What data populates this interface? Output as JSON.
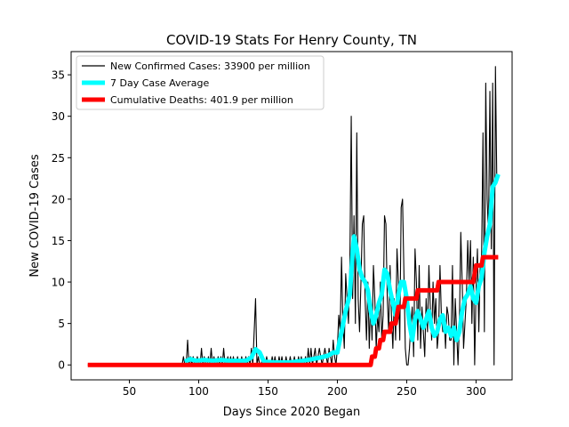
{
  "chart_data": {
    "type": "line",
    "title": "COVID-19 Stats For Henry County, TN",
    "xlabel": "Days Since 2020 Began",
    "ylabel": "New COVID-19 Cases",
    "xlim": [
      8,
      326
    ],
    "ylim": [
      -1.8,
      37.8
    ],
    "xticks": [
      50,
      100,
      150,
      200,
      250,
      300
    ],
    "yticks": [
      0,
      5,
      10,
      15,
      20,
      25,
      30,
      35
    ],
    "grid": false,
    "legend_position": "top-left",
    "series": [
      {
        "name": "New Confirmed Cases: 33900 per million",
        "color": "#000000",
        "points": [
          [
            20,
            0
          ],
          [
            88,
            0
          ],
          [
            89,
            1
          ],
          [
            90,
            0
          ],
          [
            91,
            0
          ],
          [
            92,
            3
          ],
          [
            93,
            0
          ],
          [
            94,
            1
          ],
          [
            95,
            0
          ],
          [
            96,
            1
          ],
          [
            97,
            0
          ],
          [
            98,
            0
          ],
          [
            99,
            1
          ],
          [
            100,
            0
          ],
          [
            101,
            0
          ],
          [
            102,
            2
          ],
          [
            103,
            0
          ],
          [
            104,
            1
          ],
          [
            105,
            0
          ],
          [
            106,
            0
          ],
          [
            107,
            1
          ],
          [
            108,
            0
          ],
          [
            109,
            2
          ],
          [
            110,
            0
          ],
          [
            111,
            1
          ],
          [
            112,
            0
          ],
          [
            113,
            0
          ],
          [
            114,
            1
          ],
          [
            115,
            0
          ],
          [
            116,
            1
          ],
          [
            117,
            0
          ],
          [
            118,
            2
          ],
          [
            119,
            0
          ],
          [
            120,
            0
          ],
          [
            121,
            1
          ],
          [
            122,
            0
          ],
          [
            123,
            1
          ],
          [
            124,
            0
          ],
          [
            125,
            1
          ],
          [
            126,
            0
          ],
          [
            127,
            0
          ],
          [
            128,
            1
          ],
          [
            129,
            0
          ],
          [
            130,
            0
          ],
          [
            131,
            1
          ],
          [
            132,
            0
          ],
          [
            133,
            0
          ],
          [
            134,
            1
          ],
          [
            135,
            0
          ],
          [
            136,
            1
          ],
          [
            137,
            0
          ],
          [
            138,
            2
          ],
          [
            139,
            0
          ],
          [
            140,
            4
          ],
          [
            141,
            8
          ],
          [
            142,
            0
          ],
          [
            143,
            1
          ],
          [
            144,
            0
          ],
          [
            145,
            0
          ],
          [
            146,
            1
          ],
          [
            147,
            0
          ],
          [
            148,
            0
          ],
          [
            149,
            1
          ],
          [
            150,
            0
          ],
          [
            151,
            0
          ],
          [
            152,
            0
          ],
          [
            153,
            1
          ],
          [
            154,
            0
          ],
          [
            155,
            1
          ],
          [
            156,
            0
          ],
          [
            157,
            0
          ],
          [
            158,
            1
          ],
          [
            159,
            0
          ],
          [
            160,
            1
          ],
          [
            161,
            0
          ],
          [
            162,
            0
          ],
          [
            163,
            1
          ],
          [
            164,
            0
          ],
          [
            165,
            0
          ],
          [
            166,
            1
          ],
          [
            167,
            0
          ],
          [
            168,
            0
          ],
          [
            169,
            1
          ],
          [
            170,
            0
          ],
          [
            171,
            0
          ],
          [
            172,
            1
          ],
          [
            173,
            0
          ],
          [
            174,
            1
          ],
          [
            175,
            0
          ],
          [
            176,
            0
          ],
          [
            177,
            1
          ],
          [
            178,
            0
          ],
          [
            179,
            2
          ],
          [
            180,
            0
          ],
          [
            181,
            2
          ],
          [
            182,
            0
          ],
          [
            183,
            1
          ],
          [
            184,
            2
          ],
          [
            185,
            0
          ],
          [
            186,
            1
          ],
          [
            187,
            2
          ],
          [
            188,
            1
          ],
          [
            189,
            0
          ],
          [
            190,
            1
          ],
          [
            191,
            2
          ],
          [
            192,
            1
          ],
          [
            193,
            0
          ],
          [
            194,
            2
          ],
          [
            195,
            1
          ],
          [
            196,
            0
          ],
          [
            197,
            3
          ],
          [
            198,
            1
          ],
          [
            199,
            0
          ],
          [
            200,
            2
          ],
          [
            201,
            6
          ],
          [
            202,
            4
          ],
          [
            203,
            13
          ],
          [
            204,
            5
          ],
          [
            205,
            2
          ],
          [
            206,
            11
          ],
          [
            207,
            8
          ],
          [
            208,
            5
          ],
          [
            209,
            12
          ],
          [
            210,
            30
          ],
          [
            211,
            8
          ],
          [
            212,
            18
          ],
          [
            213,
            5
          ],
          [
            214,
            28
          ],
          [
            215,
            8
          ],
          [
            216,
            4
          ],
          [
            217,
            10
          ],
          [
            218,
            17
          ],
          [
            219,
            18
          ],
          [
            220,
            8
          ],
          [
            221,
            3
          ],
          [
            222,
            10
          ],
          [
            223,
            2
          ],
          [
            224,
            8
          ],
          [
            225,
            3
          ],
          [
            226,
            12
          ],
          [
            227,
            8
          ],
          [
            228,
            2
          ],
          [
            229,
            6
          ],
          [
            230,
            4
          ],
          [
            231,
            10
          ],
          [
            232,
            3
          ],
          [
            233,
            6
          ],
          [
            234,
            18
          ],
          [
            235,
            17
          ],
          [
            236,
            8
          ],
          [
            237,
            4
          ],
          [
            238,
            12
          ],
          [
            239,
            6
          ],
          [
            240,
            2
          ],
          [
            241,
            8
          ],
          [
            242,
            3
          ],
          [
            243,
            14
          ],
          [
            244,
            10
          ],
          [
            245,
            3
          ],
          [
            246,
            19
          ],
          [
            247,
            20
          ],
          [
            248,
            11
          ],
          [
            249,
            2
          ],
          [
            250,
            0
          ],
          [
            251,
            0
          ],
          [
            252,
            2
          ],
          [
            253,
            5
          ],
          [
            254,
            7
          ],
          [
            255,
            1
          ],
          [
            256,
            14
          ],
          [
            257,
            10
          ],
          [
            258,
            3
          ],
          [
            259,
            12
          ],
          [
            260,
            2
          ],
          [
            261,
            7
          ],
          [
            262,
            4
          ],
          [
            263,
            1
          ],
          [
            264,
            8
          ],
          [
            265,
            4
          ],
          [
            266,
            12
          ],
          [
            267,
            7
          ],
          [
            268,
            3
          ],
          [
            269,
            10
          ],
          [
            270,
            5
          ],
          [
            271,
            8
          ],
          [
            272,
            2
          ],
          [
            273,
            4
          ],
          [
            274,
            12
          ],
          [
            275,
            6
          ],
          [
            276,
            4
          ],
          [
            277,
            6
          ],
          [
            278,
            2
          ],
          [
            279,
            7
          ],
          [
            280,
            6
          ],
          [
            281,
            3
          ],
          [
            282,
            3
          ],
          [
            283,
            12
          ],
          [
            284,
            0
          ],
          [
            285,
            8
          ],
          [
            286,
            4
          ],
          [
            287,
            0
          ],
          [
            288,
            5
          ],
          [
            289,
            16
          ],
          [
            290,
            10
          ],
          [
            291,
            2
          ],
          [
            292,
            5
          ],
          [
            293,
            8
          ],
          [
            294,
            15
          ],
          [
            295,
            10
          ],
          [
            296,
            15
          ],
          [
            297,
            5
          ],
          [
            298,
            13
          ],
          [
            299,
            0
          ],
          [
            300,
            9
          ],
          [
            301,
            14
          ],
          [
            302,
            4
          ],
          [
            303,
            12
          ],
          [
            304,
            13
          ],
          [
            305,
            28
          ],
          [
            306,
            4
          ],
          [
            307,
            34
          ],
          [
            308,
            20
          ],
          [
            309,
            16
          ],
          [
            310,
            33
          ],
          [
            311,
            14
          ],
          [
            312,
            34
          ],
          [
            313,
            0
          ],
          [
            314,
            36
          ],
          [
            315,
            22
          ],
          [
            316,
            23
          ]
        ]
      },
      {
        "name": "7 Day Case Average",
        "color": "#00ffff",
        "points": [
          [
            90,
            0.4
          ],
          [
            94,
            0.7
          ],
          [
            98,
            0.5
          ],
          [
            104,
            0.6
          ],
          [
            110,
            0.5
          ],
          [
            116,
            0.6
          ],
          [
            122,
            0.5
          ],
          [
            128,
            0.5
          ],
          [
            134,
            0.5
          ],
          [
            138,
            0.9
          ],
          [
            141,
            1.9
          ],
          [
            144,
            1.5
          ],
          [
            147,
            0.4
          ],
          [
            155,
            0.3
          ],
          [
            165,
            0.3
          ],
          [
            175,
            0.5
          ],
          [
            182,
            0.7
          ],
          [
            188,
            0.9
          ],
          [
            193,
            1.1
          ],
          [
            197,
            1.5
          ],
          [
            200,
            1.5
          ],
          [
            203,
            4.0
          ],
          [
            206,
            6.5
          ],
          [
            209,
            8.5
          ],
          [
            211,
            13.5
          ],
          [
            212,
            15.5
          ],
          [
            214,
            14.0
          ],
          [
            216,
            11.5
          ],
          [
            218,
            10.5
          ],
          [
            220,
            10.0
          ],
          [
            222,
            9.0
          ],
          [
            224,
            6.5
          ],
          [
            226,
            5.0
          ],
          [
            228,
            6.0
          ],
          [
            230,
            7.5
          ],
          [
            232,
            8.5
          ],
          [
            234,
            11.5
          ],
          [
            236,
            11.0
          ],
          [
            238,
            9.0
          ],
          [
            240,
            7.5
          ],
          [
            242,
            6.0
          ],
          [
            244,
            8.5
          ],
          [
            246,
            10.0
          ],
          [
            248,
            10.0
          ],
          [
            250,
            8.0
          ],
          [
            252,
            5.0
          ],
          [
            254,
            3.0
          ],
          [
            256,
            5.5
          ],
          [
            258,
            6.5
          ],
          [
            260,
            5.5
          ],
          [
            262,
            4.5
          ],
          [
            264,
            5.5
          ],
          [
            266,
            6.5
          ],
          [
            268,
            4.5
          ],
          [
            270,
            3.5
          ],
          [
            272,
            4.0
          ],
          [
            274,
            5.5
          ],
          [
            276,
            6.0
          ],
          [
            278,
            4.0
          ],
          [
            280,
            4.5
          ],
          [
            282,
            3.5
          ],
          [
            284,
            4.5
          ],
          [
            286,
            3.0
          ],
          [
            288,
            4.0
          ],
          [
            290,
            6.5
          ],
          [
            292,
            8.0
          ],
          [
            294,
            8.5
          ],
          [
            296,
            9.5
          ],
          [
            298,
            8.0
          ],
          [
            300,
            7.5
          ],
          [
            302,
            9.5
          ],
          [
            304,
            10.5
          ],
          [
            306,
            13.5
          ],
          [
            308,
            15.5
          ],
          [
            310,
            17.0
          ],
          [
            312,
            21.5
          ],
          [
            314,
            22.0
          ],
          [
            316,
            23.0
          ]
        ]
      },
      {
        "name": "Cumulative Deaths: 401.9 per million",
        "color": "#ff0000",
        "points": [
          [
            20,
            0
          ],
          [
            224,
            0
          ],
          [
            225,
            1
          ],
          [
            227,
            1
          ],
          [
            228,
            2
          ],
          [
            230,
            2
          ],
          [
            231,
            3
          ],
          [
            233,
            3
          ],
          [
            234,
            4
          ],
          [
            238,
            4
          ],
          [
            239,
            5
          ],
          [
            242,
            5
          ],
          [
            243,
            6
          ],
          [
            244,
            7
          ],
          [
            248,
            7
          ],
          [
            249,
            8
          ],
          [
            257,
            8
          ],
          [
            258,
            9
          ],
          [
            272,
            9
          ],
          [
            273,
            10
          ],
          [
            298,
            10
          ],
          [
            299,
            11
          ],
          [
            300,
            12
          ],
          [
            304,
            12
          ],
          [
            305,
            13
          ],
          [
            316,
            13
          ]
        ]
      }
    ]
  }
}
